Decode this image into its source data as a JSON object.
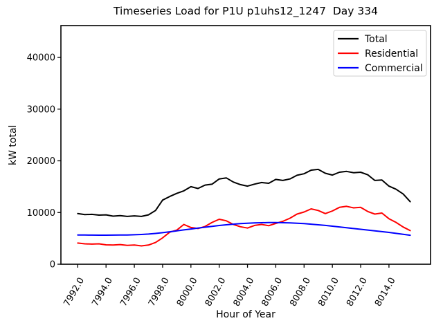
{
  "window": {
    "background": "#ffffff"
  },
  "chart_data": {
    "type": "line",
    "title": "Timeseries Load for P1U p1uhs12_1247  Day 334",
    "xlabel": "Hour of Year",
    "ylabel": "kW total",
    "grid": false,
    "xlim": [
      7990.81,
      8016.94
    ],
    "ylim": [
      0,
      46160
    ],
    "x_ticks": [
      7992,
      7994,
      7996,
      7998,
      8000,
      8002,
      8004,
      8006,
      8008,
      8010,
      8012,
      8014
    ],
    "x_tick_labels": [
      "7992.0",
      "7994.0",
      "7996.0",
      "7998.0",
      "8000.0",
      "8002.0",
      "8004.0",
      "8006.0",
      "8008.0",
      "8010.0",
      "8012.0",
      "8014.0"
    ],
    "x_tick_rotation_deg": 60,
    "y_ticks": [
      0,
      10000,
      20000,
      30000,
      40000
    ],
    "y_tick_labels": [
      "0",
      "10000",
      "20000",
      "30000",
      "40000"
    ],
    "x_start": 7992.0,
    "x_step": 0.5,
    "legend": {
      "position": "upper right",
      "entries": [
        {
          "label": "Total",
          "color": "#000000"
        },
        {
          "label": "Residential",
          "color": "#ff0000"
        },
        {
          "label": "Commercial",
          "color": "#0000ff"
        }
      ]
    },
    "series": [
      {
        "name": "Total",
        "color": "#000000",
        "values": [
          9800,
          9600,
          9650,
          9500,
          9550,
          9300,
          9400,
          9250,
          9350,
          9250,
          9550,
          10400,
          12400,
          13100,
          13700,
          14200,
          15000,
          14650,
          15300,
          15500,
          16500,
          16700,
          15900,
          15400,
          15100,
          15500,
          15800,
          15650,
          16400,
          16200,
          16500,
          17200,
          17500,
          18200,
          18350,
          17600,
          17250,
          17800,
          17950,
          17700,
          17800,
          17300,
          16200,
          16300,
          15100,
          14500,
          13600,
          12100
        ]
      },
      {
        "name": "Residential",
        "color": "#ff0000",
        "values": [
          4100,
          3950,
          3900,
          3950,
          3750,
          3700,
          3800,
          3650,
          3700,
          3550,
          3700,
          4200,
          5100,
          6200,
          6600,
          7700,
          7100,
          6900,
          7300,
          8100,
          8700,
          8400,
          7700,
          7250,
          7000,
          7500,
          7700,
          7450,
          7900,
          8300,
          8900,
          9700,
          10100,
          10700,
          10400,
          9800,
          10300,
          11000,
          11200,
          10900,
          11000,
          10200,
          9700,
          9900,
          8800,
          8100,
          7200,
          6500
        ]
      },
      {
        "name": "Commercial",
        "color": "#0000ff",
        "values": [
          5650,
          5640,
          5630,
          5625,
          5625,
          5630,
          5645,
          5665,
          5700,
          5750,
          5830,
          5950,
          6100,
          6270,
          6450,
          6630,
          6810,
          6990,
          7160,
          7330,
          7490,
          7630,
          7750,
          7850,
          7930,
          7990,
          8030,
          8050,
          8050,
          8030,
          7990,
          7930,
          7850,
          7750,
          7630,
          7500,
          7360,
          7210,
          7060,
          6910,
          6760,
          6610,
          6460,
          6300,
          6150,
          5970,
          5800,
          5600
        ]
      }
    ]
  }
}
